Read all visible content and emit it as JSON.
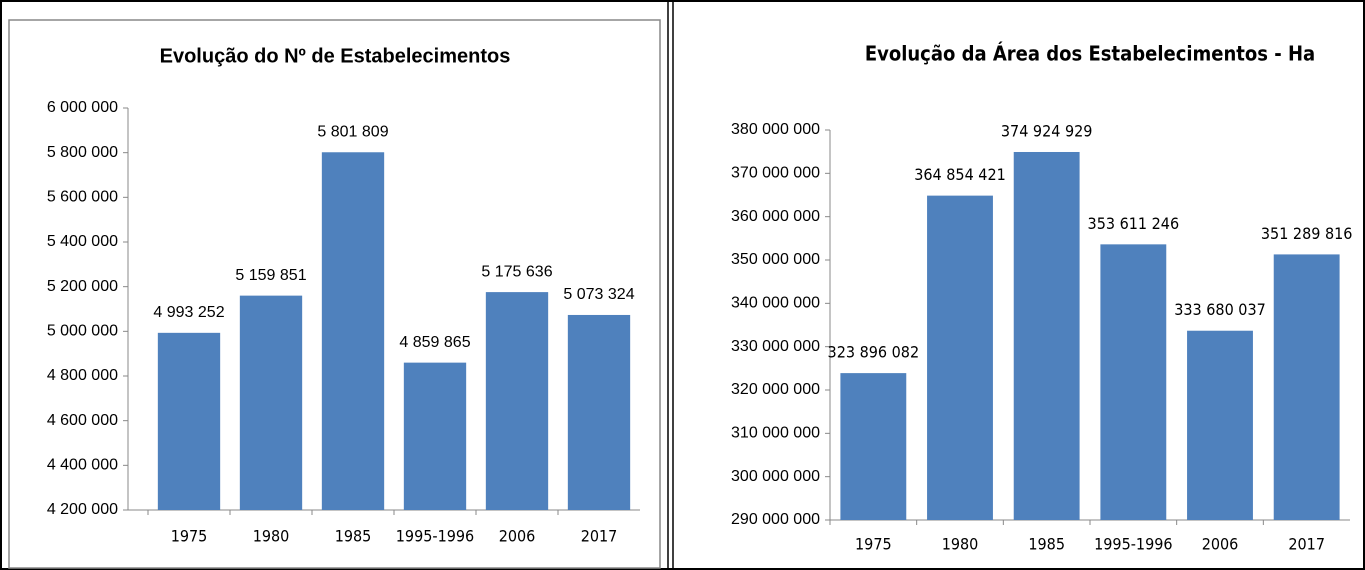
{
  "chart_data": [
    {
      "type": "bar",
      "title": "Evolução do Nº de Estabelecimentos",
      "categories": [
        "1975",
        "1980",
        "1985",
        "1995-1996",
        "2006",
        "2017"
      ],
      "values": [
        4993252,
        5159851,
        5801809,
        4859865,
        5175636,
        5073324
      ],
      "value_labels": [
        "4 993 252",
        "5 159 851",
        "5 801 809",
        "4 859 865",
        "5 175 636",
        "5 073 324"
      ],
      "color": "#4f81bd",
      "ylim": [
        4200000,
        6000000
      ],
      "yticks": [
        {
          "value": 4200000,
          "label": "4 200 000"
        },
        {
          "value": 4400000,
          "label": "4 400 000"
        },
        {
          "value": 4600000,
          "label": "4 600 000"
        },
        {
          "value": 4800000,
          "label": "4 800 000"
        },
        {
          "value": 5000000,
          "label": "5 000 000"
        },
        {
          "value": 5200000,
          "label": "5 200 000"
        },
        {
          "value": 5400000,
          "label": "5 400 000"
        },
        {
          "value": 5600000,
          "label": "5 600 000"
        },
        {
          "value": 5800000,
          "label": "5 800 000"
        },
        {
          "value": 6000000,
          "label": "6 000 000"
        }
      ]
    },
    {
      "type": "bar",
      "title": "Evolução da Área dos Estabelecimentos - Ha",
      "categories": [
        "1975",
        "1980",
        "1985",
        "1995-1996",
        "2006",
        "2017"
      ],
      "values": [
        323896082,
        364854421,
        374924929,
        353611246,
        333680037,
        351289816
      ],
      "value_labels": [
        "323 896 082",
        "364 854 421",
        "374 924 929",
        "353 611 246",
        "333 680 037",
        "351 289 816"
      ],
      "color": "#4f81bd",
      "ylim": [
        290000000,
        380000000
      ],
      "yticks": [
        {
          "value": 290000000,
          "label": "290 000 000"
        },
        {
          "value": 300000000,
          "label": "300 000 000"
        },
        {
          "value": 310000000,
          "label": "310 000 000"
        },
        {
          "value": 320000000,
          "label": "320 000 000"
        },
        {
          "value": 330000000,
          "label": "330 000 000"
        },
        {
          "value": 340000000,
          "label": "340 000 000"
        },
        {
          "value": 350000000,
          "label": "350 000 000"
        },
        {
          "value": 360000000,
          "label": "360 000 000"
        },
        {
          "value": 370000000,
          "label": "370 000 000"
        },
        {
          "value": 380000000,
          "label": "380 000 000"
        }
      ]
    }
  ]
}
